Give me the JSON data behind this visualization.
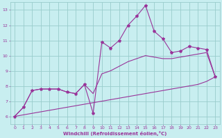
{
  "xlabel": "Windchill (Refroidissement éolien,°C)",
  "bg_color": "#c8eef0",
  "grid_color": "#99cccc",
  "line_color": "#993399",
  "x_data": [
    0,
    1,
    2,
    3,
    4,
    5,
    6,
    7,
    8,
    9,
    10,
    11,
    12,
    13,
    14,
    15,
    16,
    17,
    18,
    19,
    20,
    21,
    22,
    23
  ],
  "y_main": [
    6.0,
    6.6,
    7.7,
    7.8,
    7.8,
    7.8,
    7.6,
    7.5,
    8.1,
    6.2,
    10.9,
    10.5,
    11.0,
    12.0,
    12.6,
    13.3,
    11.6,
    11.1,
    10.2,
    10.3,
    10.6,
    10.5,
    10.4,
    8.6
  ],
  "y_low": [
    6.0,
    6.1,
    6.2,
    6.3,
    6.4,
    6.5,
    6.6,
    6.7,
    6.8,
    6.9,
    7.0,
    7.1,
    7.2,
    7.3,
    7.4,
    7.5,
    7.6,
    7.7,
    7.8,
    7.9,
    8.0,
    8.1,
    8.3,
    8.6
  ],
  "y_high": [
    6.0,
    6.6,
    7.7,
    7.8,
    7.8,
    7.8,
    7.6,
    7.5,
    8.1,
    7.5,
    8.8,
    9.0,
    9.3,
    9.6,
    9.8,
    10.0,
    9.9,
    9.8,
    9.8,
    9.9,
    10.0,
    10.1,
    10.2,
    8.6
  ],
  "xlim": [
    -0.5,
    23.5
  ],
  "ylim": [
    5.5,
    13.5
  ],
  "yticks": [
    6,
    7,
    8,
    9,
    10,
    11,
    12,
    13
  ],
  "xticks": [
    0,
    1,
    2,
    3,
    4,
    5,
    6,
    7,
    8,
    9,
    10,
    11,
    12,
    13,
    14,
    15,
    16,
    17,
    18,
    19,
    20,
    21,
    22,
    23
  ]
}
